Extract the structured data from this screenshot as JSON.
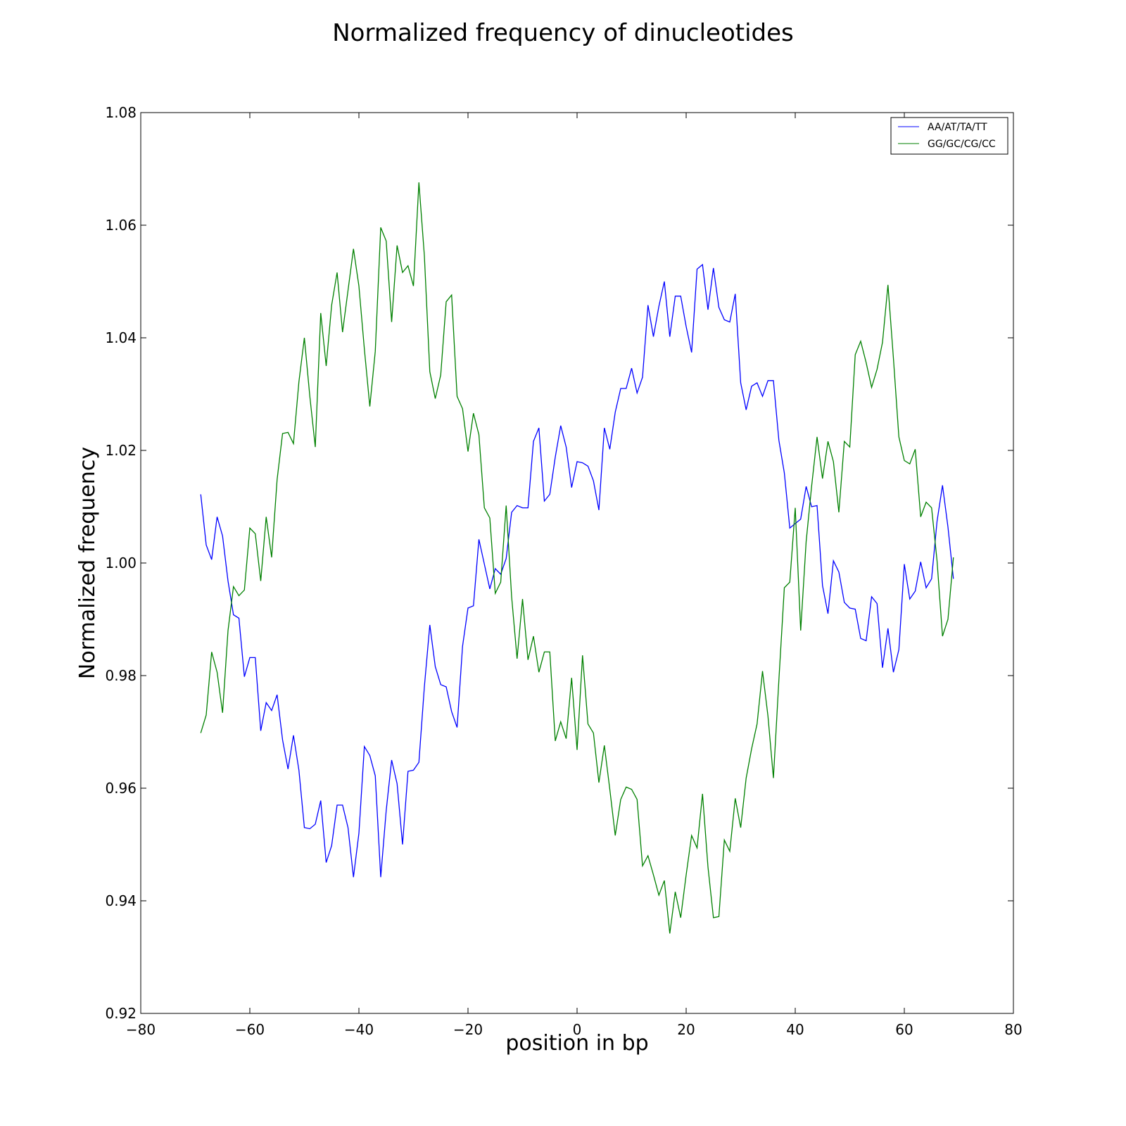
{
  "chart_data": {
    "type": "line",
    "title": "Normalized frequency of dinucleotides",
    "xlabel": "position in bp",
    "ylabel": "Normalized frequency",
    "xlim": [
      -80,
      80
    ],
    "ylim": [
      0.92,
      1.08
    ],
    "xticks": [
      -80,
      -60,
      -40,
      -20,
      0,
      20,
      40,
      60,
      80
    ],
    "xtick_labels": [
      "−80",
      "−60",
      "−40",
      "−20",
      "0",
      "20",
      "40",
      "60",
      "80"
    ],
    "yticks": [
      0.92,
      0.94,
      0.96,
      0.98,
      1.0,
      1.02,
      1.04,
      1.06,
      1.08
    ],
    "ytick_labels": [
      "0.92",
      "0.94",
      "0.96",
      "0.98",
      "1.00",
      "1.02",
      "1.04",
      "1.06",
      "1.08"
    ],
    "grid": false,
    "legend_position": "top-right",
    "x": [
      -69,
      -68,
      -67,
      -66,
      -65,
      -64,
      -63,
      -62,
      -61,
      -60,
      -59,
      -58,
      -57,
      -56,
      -55,
      -54,
      -53,
      -52,
      -51,
      -50,
      -49,
      -48,
      -47,
      -46,
      -45,
      -44,
      -43,
      -42,
      -41,
      -40,
      -39,
      -38,
      -37,
      -36,
      -35,
      -34,
      -33,
      -32,
      -31,
      -30,
      -29,
      -28,
      -27,
      -26,
      -25,
      -24,
      -23,
      -22,
      -21,
      -20,
      -19,
      -18,
      -17,
      -16,
      -15,
      -14,
      -13,
      -12,
      -11,
      -10,
      -9,
      -8,
      -7,
      -6,
      -5,
      -4,
      -3,
      -2,
      -1,
      0,
      1,
      2,
      3,
      4,
      5,
      6,
      7,
      8,
      9,
      10,
      11,
      12,
      13,
      14,
      15,
      16,
      17,
      18,
      19,
      20,
      21,
      22,
      23,
      24,
      25,
      26,
      27,
      28,
      29,
      30,
      31,
      32,
      33,
      34,
      35,
      36,
      37,
      38,
      39,
      40,
      41,
      42,
      43,
      44,
      45,
      46,
      47,
      48,
      49,
      50,
      51,
      52,
      53,
      54,
      55,
      56,
      57,
      58,
      59,
      60,
      61,
      62,
      63,
      64,
      65,
      66,
      67,
      68,
      69
    ],
    "series": [
      {
        "name": "AA/AT/TA/TT",
        "color": "#0000ff",
        "values": [
          1.0122,
          1.0032,
          1.0006,
          1.0082,
          1.0048,
          0.9968,
          0.9908,
          0.9902,
          0.9798,
          0.9832,
          0.9832,
          0.9702,
          0.9752,
          0.9738,
          0.9766,
          0.9686,
          0.9634,
          0.9694,
          0.9632,
          0.953,
          0.9528,
          0.9536,
          0.9578,
          0.9468,
          0.9498,
          0.957,
          0.957,
          0.953,
          0.9442,
          0.952,
          0.9674,
          0.9658,
          0.9622,
          0.9442,
          0.956,
          0.965,
          0.9608,
          0.95,
          0.963,
          0.9632,
          0.9646,
          0.978,
          0.989,
          0.9816,
          0.9784,
          0.978,
          0.9736,
          0.9708,
          0.9852,
          0.992,
          0.9924,
          1.0042,
          0.9998,
          0.9954,
          0.999,
          0.998,
          1.0008,
          1.009,
          1.0102,
          1.0098,
          1.0098,
          1.0216,
          1.024,
          1.011,
          1.0122,
          1.0188,
          1.0244,
          1.0206,
          1.0134,
          1.018,
          1.0178,
          1.0172,
          1.0146,
          1.0094,
          1.024,
          1.0202,
          1.0268,
          1.031,
          1.031,
          1.0346,
          1.0302,
          1.033,
          1.0458,
          1.0402,
          1.0456,
          1.05,
          1.0402,
          1.0474,
          1.0474,
          1.042,
          1.0374,
          1.0522,
          1.053,
          1.045,
          1.0524,
          1.0454,
          1.0432,
          1.0428,
          1.0478,
          1.032,
          1.0272,
          1.0314,
          1.032,
          1.0296,
          1.0324,
          1.0324,
          1.0218,
          1.016,
          1.0062,
          1.007,
          1.0078,
          1.0136,
          1.01,
          1.0102,
          0.996,
          0.991,
          1.0004,
          0.9984,
          0.993,
          0.992,
          0.9918,
          0.9866,
          0.9862,
          0.994,
          0.9928,
          0.9814,
          0.9884,
          0.9806,
          0.9846,
          0.9998,
          0.9936,
          0.995,
          1.0002,
          0.9956,
          0.9972,
          1.0074,
          1.0138,
          1.0064,
          0.9972
        ]
      },
      {
        "name": "GG/GC/CG/CC",
        "color": "#008000",
        "values": [
          0.9698,
          0.973,
          0.9842,
          0.9806,
          0.9734,
          0.988,
          0.9958,
          0.9942,
          0.9952,
          1.0062,
          1.0052,
          0.9968,
          1.0082,
          1.001,
          1.0148,
          1.023,
          1.0232,
          1.0212,
          1.0322,
          1.04,
          1.0296,
          1.0206,
          1.0444,
          1.035,
          1.0458,
          1.0516,
          1.041,
          1.0484,
          1.0558,
          1.0492,
          1.038,
          1.0278,
          1.0376,
          1.0596,
          1.0572,
          1.0428,
          1.0564,
          1.0516,
          1.0528,
          1.0492,
          1.0676,
          1.0546,
          1.034,
          1.0292,
          1.0334,
          1.0464,
          1.0476,
          1.0296,
          1.0274,
          1.0198,
          1.0266,
          1.0228,
          1.0098,
          1.008,
          0.9946,
          0.9966,
          1.0102,
          0.994,
          0.983,
          0.9936,
          0.9828,
          0.987,
          0.9806,
          0.9842,
          0.9842,
          0.9684,
          0.9718,
          0.9688,
          0.9796,
          0.9668,
          0.9836,
          0.9714,
          0.9698,
          0.961,
          0.9676,
          0.9598,
          0.9516,
          0.958,
          0.9602,
          0.9598,
          0.958,
          0.9462,
          0.948,
          0.9446,
          0.941,
          0.9436,
          0.9342,
          0.9416,
          0.937,
          0.9446,
          0.9516,
          0.9494,
          0.959,
          0.946,
          0.937,
          0.9372,
          0.9508,
          0.9488,
          0.9582,
          0.953,
          0.9618,
          0.967,
          0.9714,
          0.9808,
          0.9728,
          0.9618,
          0.9792,
          0.9956,
          0.9966,
          1.0098,
          0.988,
          1.0038,
          1.0136,
          1.0224,
          1.015,
          1.0216,
          1.018,
          1.009,
          1.0216,
          1.0206,
          1.037,
          1.0394,
          1.0356,
          1.0312,
          1.0344,
          1.0392,
          1.0494,
          1.0364,
          1.0224,
          1.0182,
          1.0176,
          1.0202,
          1.0082,
          1.0108,
          1.0098,
          1.0004,
          0.987,
          0.99,
          1.001
        ]
      }
    ]
  }
}
